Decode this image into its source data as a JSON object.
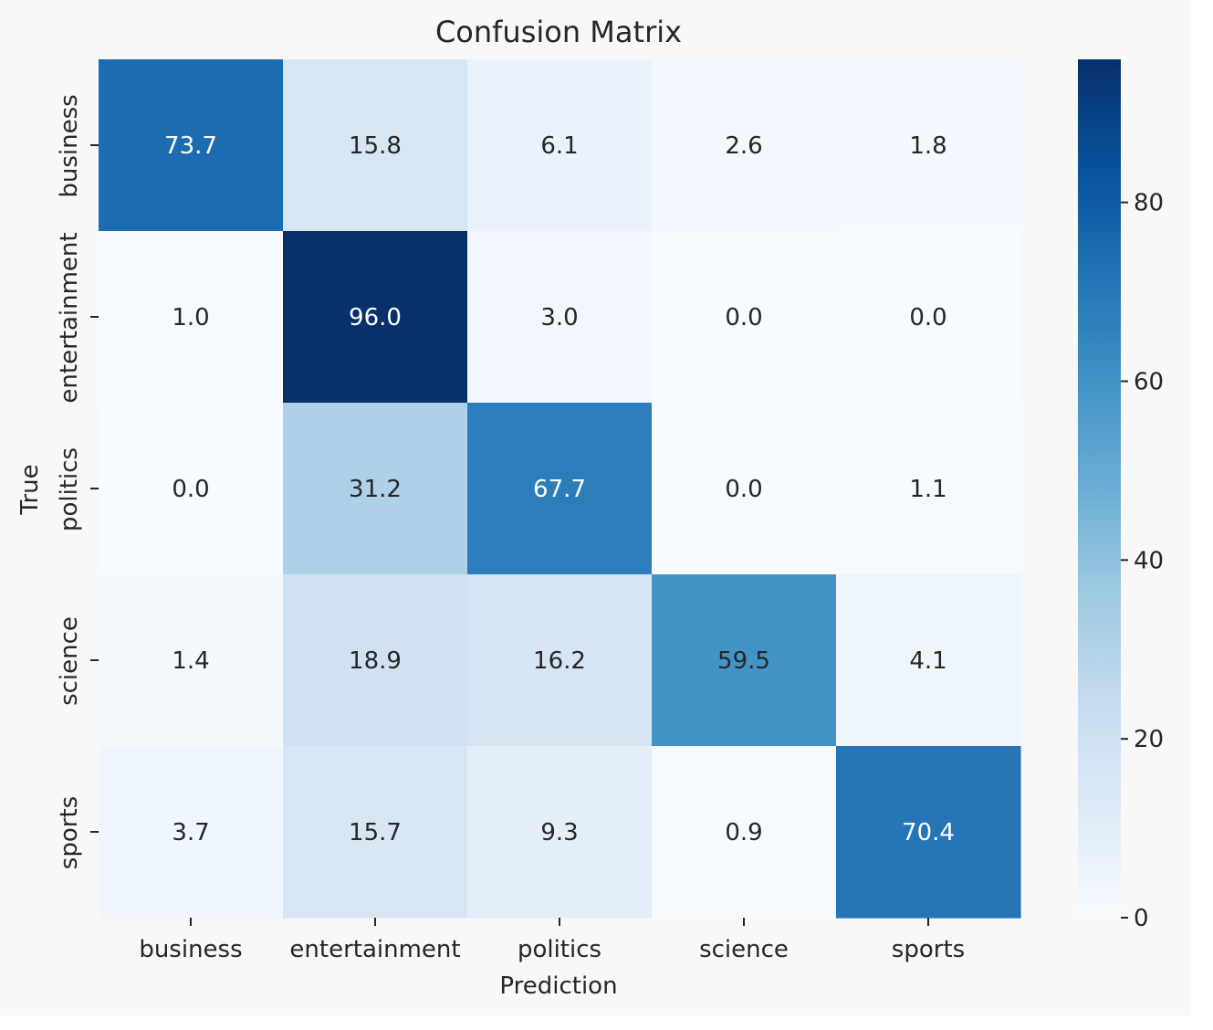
{
  "chart_data": {
    "type": "heatmap",
    "title": "Confusion Matrix",
    "xlabel": "Prediction",
    "ylabel": "True",
    "x_categories": [
      "business",
      "entertainment",
      "politics",
      "science",
      "sports"
    ],
    "y_categories": [
      "business",
      "entertainment",
      "politics",
      "science",
      "sports"
    ],
    "values": [
      [
        73.7,
        15.8,
        6.1,
        2.6,
        1.8
      ],
      [
        1.0,
        96.0,
        3.0,
        0.0,
        0.0
      ],
      [
        0.0,
        31.2,
        67.7,
        0.0,
        1.1
      ],
      [
        1.4,
        18.9,
        16.2,
        59.5,
        4.1
      ],
      [
        3.7,
        15.7,
        9.3,
        0.9,
        70.4
      ]
    ],
    "labels": [
      [
        "73.7",
        "15.8",
        "6.1",
        "2.6",
        "1.8"
      ],
      [
        "1.0",
        "96.0",
        "3.0",
        "0.0",
        "0.0"
      ],
      [
        "0.0",
        "31.2",
        "67.7",
        "0.0",
        "1.1"
      ],
      [
        "1.4",
        "18.9",
        "16.2",
        "59.5",
        "4.1"
      ],
      [
        "3.7",
        "15.7",
        "9.3",
        "0.9",
        "70.4"
      ]
    ],
    "colormap": "Blues",
    "colorbar": {
      "range": [
        0,
        96.0
      ],
      "ticks": [
        0,
        20,
        40,
        60,
        80
      ],
      "tick_labels": [
        "0",
        "20",
        "40",
        "60",
        "80"
      ]
    },
    "colors": {
      "blues_stops": [
        "#f7fbff",
        "#deebf7",
        "#c6dbef",
        "#9ecae1",
        "#6baed6",
        "#4292c6",
        "#2171b5",
        "#08519c",
        "#08306b"
      ],
      "text_dark": "#262626",
      "text_light": "#ffffff",
      "background": "#f8f8f8"
    }
  }
}
